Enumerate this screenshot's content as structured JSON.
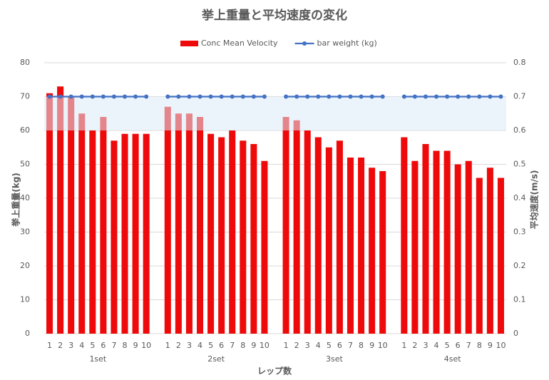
{
  "chart_data": {
    "type": "bar",
    "title": "挙上重量と平均速度の変化",
    "x_label": "レップ数",
    "y_label": "挙上重量(kg)",
    "y2_label": "平均速度(m/s)",
    "categories": [
      "1",
      "2",
      "3",
      "4",
      "5",
      "6",
      "7",
      "8",
      "9",
      "10",
      null,
      "1",
      "2",
      "3",
      "4",
      "5",
      "6",
      "7",
      "8",
      "9",
      "10",
      null,
      "1",
      "2",
      "3",
      "4",
      "5",
      "6",
      "7",
      "8",
      "9",
      "10",
      null,
      "1",
      "2",
      "3",
      "4",
      "5",
      "6",
      "7",
      "8",
      "9",
      "10"
    ],
    "groups": [
      "1set",
      "2set",
      "3set",
      "4set"
    ],
    "series": [
      {
        "name": "Conc Mean Velocity",
        "type": "bar",
        "axis": "y2",
        "color": "#ee0a0a",
        "values": [
          0.71,
          0.73,
          0.7,
          0.65,
          0.6,
          0.64,
          0.57,
          0.59,
          0.59,
          0.59,
          null,
          0.67,
          0.65,
          0.65,
          0.64,
          0.59,
          0.58,
          0.6,
          0.57,
          0.56,
          0.51,
          null,
          0.64,
          0.63,
          0.6,
          0.58,
          0.55,
          0.57,
          0.52,
          0.52,
          0.49,
          0.48,
          null,
          0.58,
          0.51,
          0.56,
          0.54,
          0.54,
          0.5,
          0.51,
          0.46,
          0.49,
          0.46
        ]
      },
      {
        "name": "bar weight (kg)",
        "type": "line",
        "axis": "y",
        "color": "#4472c4",
        "values": [
          70,
          70,
          70,
          70,
          70,
          70,
          70,
          70,
          70,
          70,
          null,
          70,
          70,
          70,
          70,
          70,
          70,
          70,
          70,
          70,
          70,
          null,
          70,
          70,
          70,
          70,
          70,
          70,
          70,
          70,
          70,
          70,
          null,
          70,
          70,
          70,
          70,
          70,
          70,
          70,
          70,
          70,
          70
        ]
      }
    ],
    "ylim": [
      0,
      80
    ],
    "yticks": [
      0,
      10,
      20,
      30,
      40,
      50,
      60,
      70,
      80
    ],
    "y2lim": [
      0,
      0.8
    ],
    "y2ticks": [
      0,
      0.1,
      0.2,
      0.3,
      0.4,
      0.5,
      0.6,
      0.7,
      0.8
    ],
    "band_y2": [
      0.6,
      0.7
    ],
    "grid": true,
    "legend": "top"
  }
}
